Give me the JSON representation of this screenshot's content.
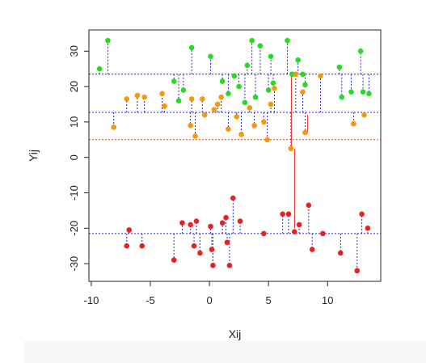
{
  "chart_data": {
    "type": "scatter",
    "title": "",
    "xlabel": "Xij",
    "ylabel": "Yij",
    "xlim": [
      -10.2,
      14.5
    ],
    "ylim": [
      -35,
      36
    ],
    "x_ticks": [
      -10,
      -5,
      0,
      5,
      10
    ],
    "y_ticks": [
      -30,
      -20,
      -10,
      0,
      10,
      20,
      30
    ],
    "grid": false,
    "legend": "none",
    "grand_mean": 5,
    "grand_mean_color": "#cd4f2a",
    "mean_line_color": "#2222dd",
    "series": [
      {
        "group_mean": 23.5,
        "color": "#22dd22",
        "x": [
          -9.3,
          -8.6,
          -3.0,
          -2.6,
          -2.2,
          -1.5,
          0.1,
          1.1,
          1.6,
          2.1,
          2.5,
          3.0,
          3.2,
          3.6,
          3.9,
          4.3,
          5.0,
          5.2,
          5.4,
          6.6,
          7.0,
          7.5,
          7.9,
          8.1,
          11.0,
          11.2,
          12.0,
          12.8,
          13.0,
          13.5
        ],
        "y": [
          25,
          33,
          21.5,
          16,
          19,
          31,
          28.5,
          21.5,
          18,
          23,
          20,
          15.5,
          26,
          33,
          17,
          31.5,
          19,
          28.5,
          21,
          33,
          23.5,
          27.5,
          23.5,
          20.5,
          25.5,
          17,
          18.5,
          30,
          18.5,
          18
        ]
      },
      {
        "group_mean": 12.7,
        "color": "#f39a0c",
        "x": [
          -7.0,
          -8.1,
          -6.1,
          -5.5,
          -4.0,
          -3.8,
          -1.6,
          -1.5,
          -1.2,
          -0.6,
          -0.4,
          0.4,
          0.7,
          1.0,
          1.6,
          2.3,
          2.7,
          3.4,
          3.8,
          4.6,
          4.9,
          5.2,
          5.5,
          6.9,
          7.3,
          7.9,
          8.1,
          9.4,
          12.2,
          13.1
        ],
        "y": [
          16.5,
          8.5,
          17.5,
          17,
          18,
          14.5,
          9,
          16.5,
          6,
          16.5,
          12,
          13.5,
          15,
          17,
          8,
          11.5,
          6.5,
          14,
          9,
          10,
          5,
          15,
          19.5,
          2.5,
          23.5,
          18.5,
          7,
          23,
          9.5,
          12
        ]
      },
      {
        "group_mean": -21.5,
        "color": "#e82020",
        "x": [
          -7.0,
          -6.8,
          -5.7,
          -3.0,
          -2.3,
          -1.6,
          -1.3,
          -1.1,
          -0.8,
          0.1,
          0.2,
          0.3,
          1.1,
          1.4,
          1.5,
          1.7,
          2.0,
          2.6,
          4.6,
          6.2,
          6.7,
          7.2,
          7.6,
          8.4,
          8.7,
          9.6,
          11.1,
          12.5,
          12.9,
          13.4
        ],
        "y": [
          -25,
          -20.5,
          -25,
          -29,
          -18.5,
          -19,
          -25,
          -18,
          -27,
          -19.5,
          -26,
          -30.5,
          -18.5,
          -17,
          -24,
          -30.5,
          -11.5,
          -18,
          -21.5,
          -16,
          -16,
          -21,
          -19,
          -13.5,
          -26,
          -21.5,
          -27,
          -32,
          -16,
          -20
        ]
      }
    ],
    "highlight": {
      "x": 7.0,
      "y_from": 2.5,
      "y_to": 23.5,
      "color": "#e82020"
    }
  }
}
